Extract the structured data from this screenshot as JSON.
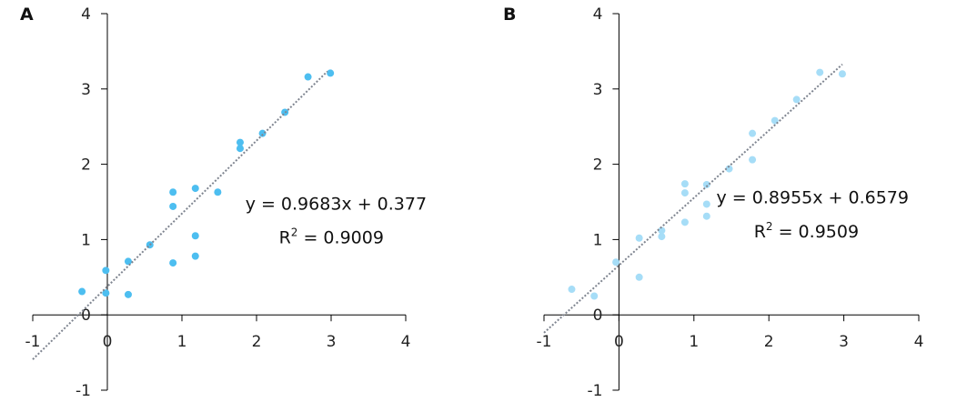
{
  "chart_data": [
    {
      "type": "scatter",
      "panel_label": "A",
      "xlim": [
        -1,
        4
      ],
      "ylim": [
        -1,
        4
      ],
      "xticks": [
        "-1",
        "0",
        "1",
        "2",
        "3",
        "4"
      ],
      "yticks": [
        "-1",
        "0",
        "1",
        "2",
        "3",
        "4"
      ],
      "grid": false,
      "point_color": "#4DBEF0",
      "trendline_color": "#7F8590",
      "trendline": {
        "slope": 0.9683,
        "intercept": 0.377,
        "x_range": [
          -1,
          2.95
        ],
        "style": "dotted"
      },
      "equation": "y = 0.9683x + 0.377",
      "r2_label": "R",
      "r2_value": " = 0.9009",
      "points": [
        [
          -0.34,
          0.31
        ],
        [
          -0.02,
          0.59
        ],
        [
          -0.02,
          0.29
        ],
        [
          0.28,
          0.71
        ],
        [
          0.28,
          0.27
        ],
        [
          0.57,
          0.93
        ],
        [
          0.88,
          1.63
        ],
        [
          0.88,
          1.44
        ],
        [
          0.88,
          0.69
        ],
        [
          1.18,
          1.68
        ],
        [
          1.18,
          1.05
        ],
        [
          1.18,
          0.78
        ],
        [
          1.48,
          1.63
        ],
        [
          1.78,
          2.29
        ],
        [
          1.78,
          2.21
        ],
        [
          2.08,
          2.41
        ],
        [
          2.38,
          2.69
        ],
        [
          2.69,
          3.16
        ],
        [
          2.99,
          3.21
        ]
      ]
    },
    {
      "type": "scatter",
      "panel_label": "B",
      "xlim": [
        -1,
        4
      ],
      "ylim": [
        -1,
        4
      ],
      "xticks": [
        "-1",
        "0",
        "1",
        "2",
        "3",
        "4"
      ],
      "yticks": [
        "-1",
        "0",
        "1",
        "2",
        "3",
        "4"
      ],
      "grid": false,
      "point_color": "#A6DDF7",
      "trendline_color": "#7F8590",
      "trendline": {
        "slope": 0.8955,
        "intercept": 0.6579,
        "x_range": [
          -1,
          2.98
        ],
        "style": "dotted"
      },
      "equation": "y = 0.8955x + 0.6579",
      "r2_label": "R",
      "r2_value": " = 0.9509",
      "points": [
        [
          -0.63,
          0.34
        ],
        [
          -0.33,
          0.25
        ],
        [
          -0.04,
          0.7
        ],
        [
          0.27,
          1.02
        ],
        [
          0.27,
          0.5
        ],
        [
          0.57,
          1.12
        ],
        [
          0.57,
          1.04
        ],
        [
          0.88,
          1.74
        ],
        [
          0.88,
          1.62
        ],
        [
          0.88,
          1.23
        ],
        [
          1.17,
          1.73
        ],
        [
          1.17,
          1.47
        ],
        [
          1.17,
          1.31
        ],
        [
          1.47,
          1.94
        ],
        [
          1.78,
          2.41
        ],
        [
          1.78,
          2.06
        ],
        [
          2.08,
          2.58
        ],
        [
          2.37,
          2.86
        ],
        [
          2.68,
          3.22
        ],
        [
          2.98,
          3.2
        ]
      ]
    }
  ]
}
